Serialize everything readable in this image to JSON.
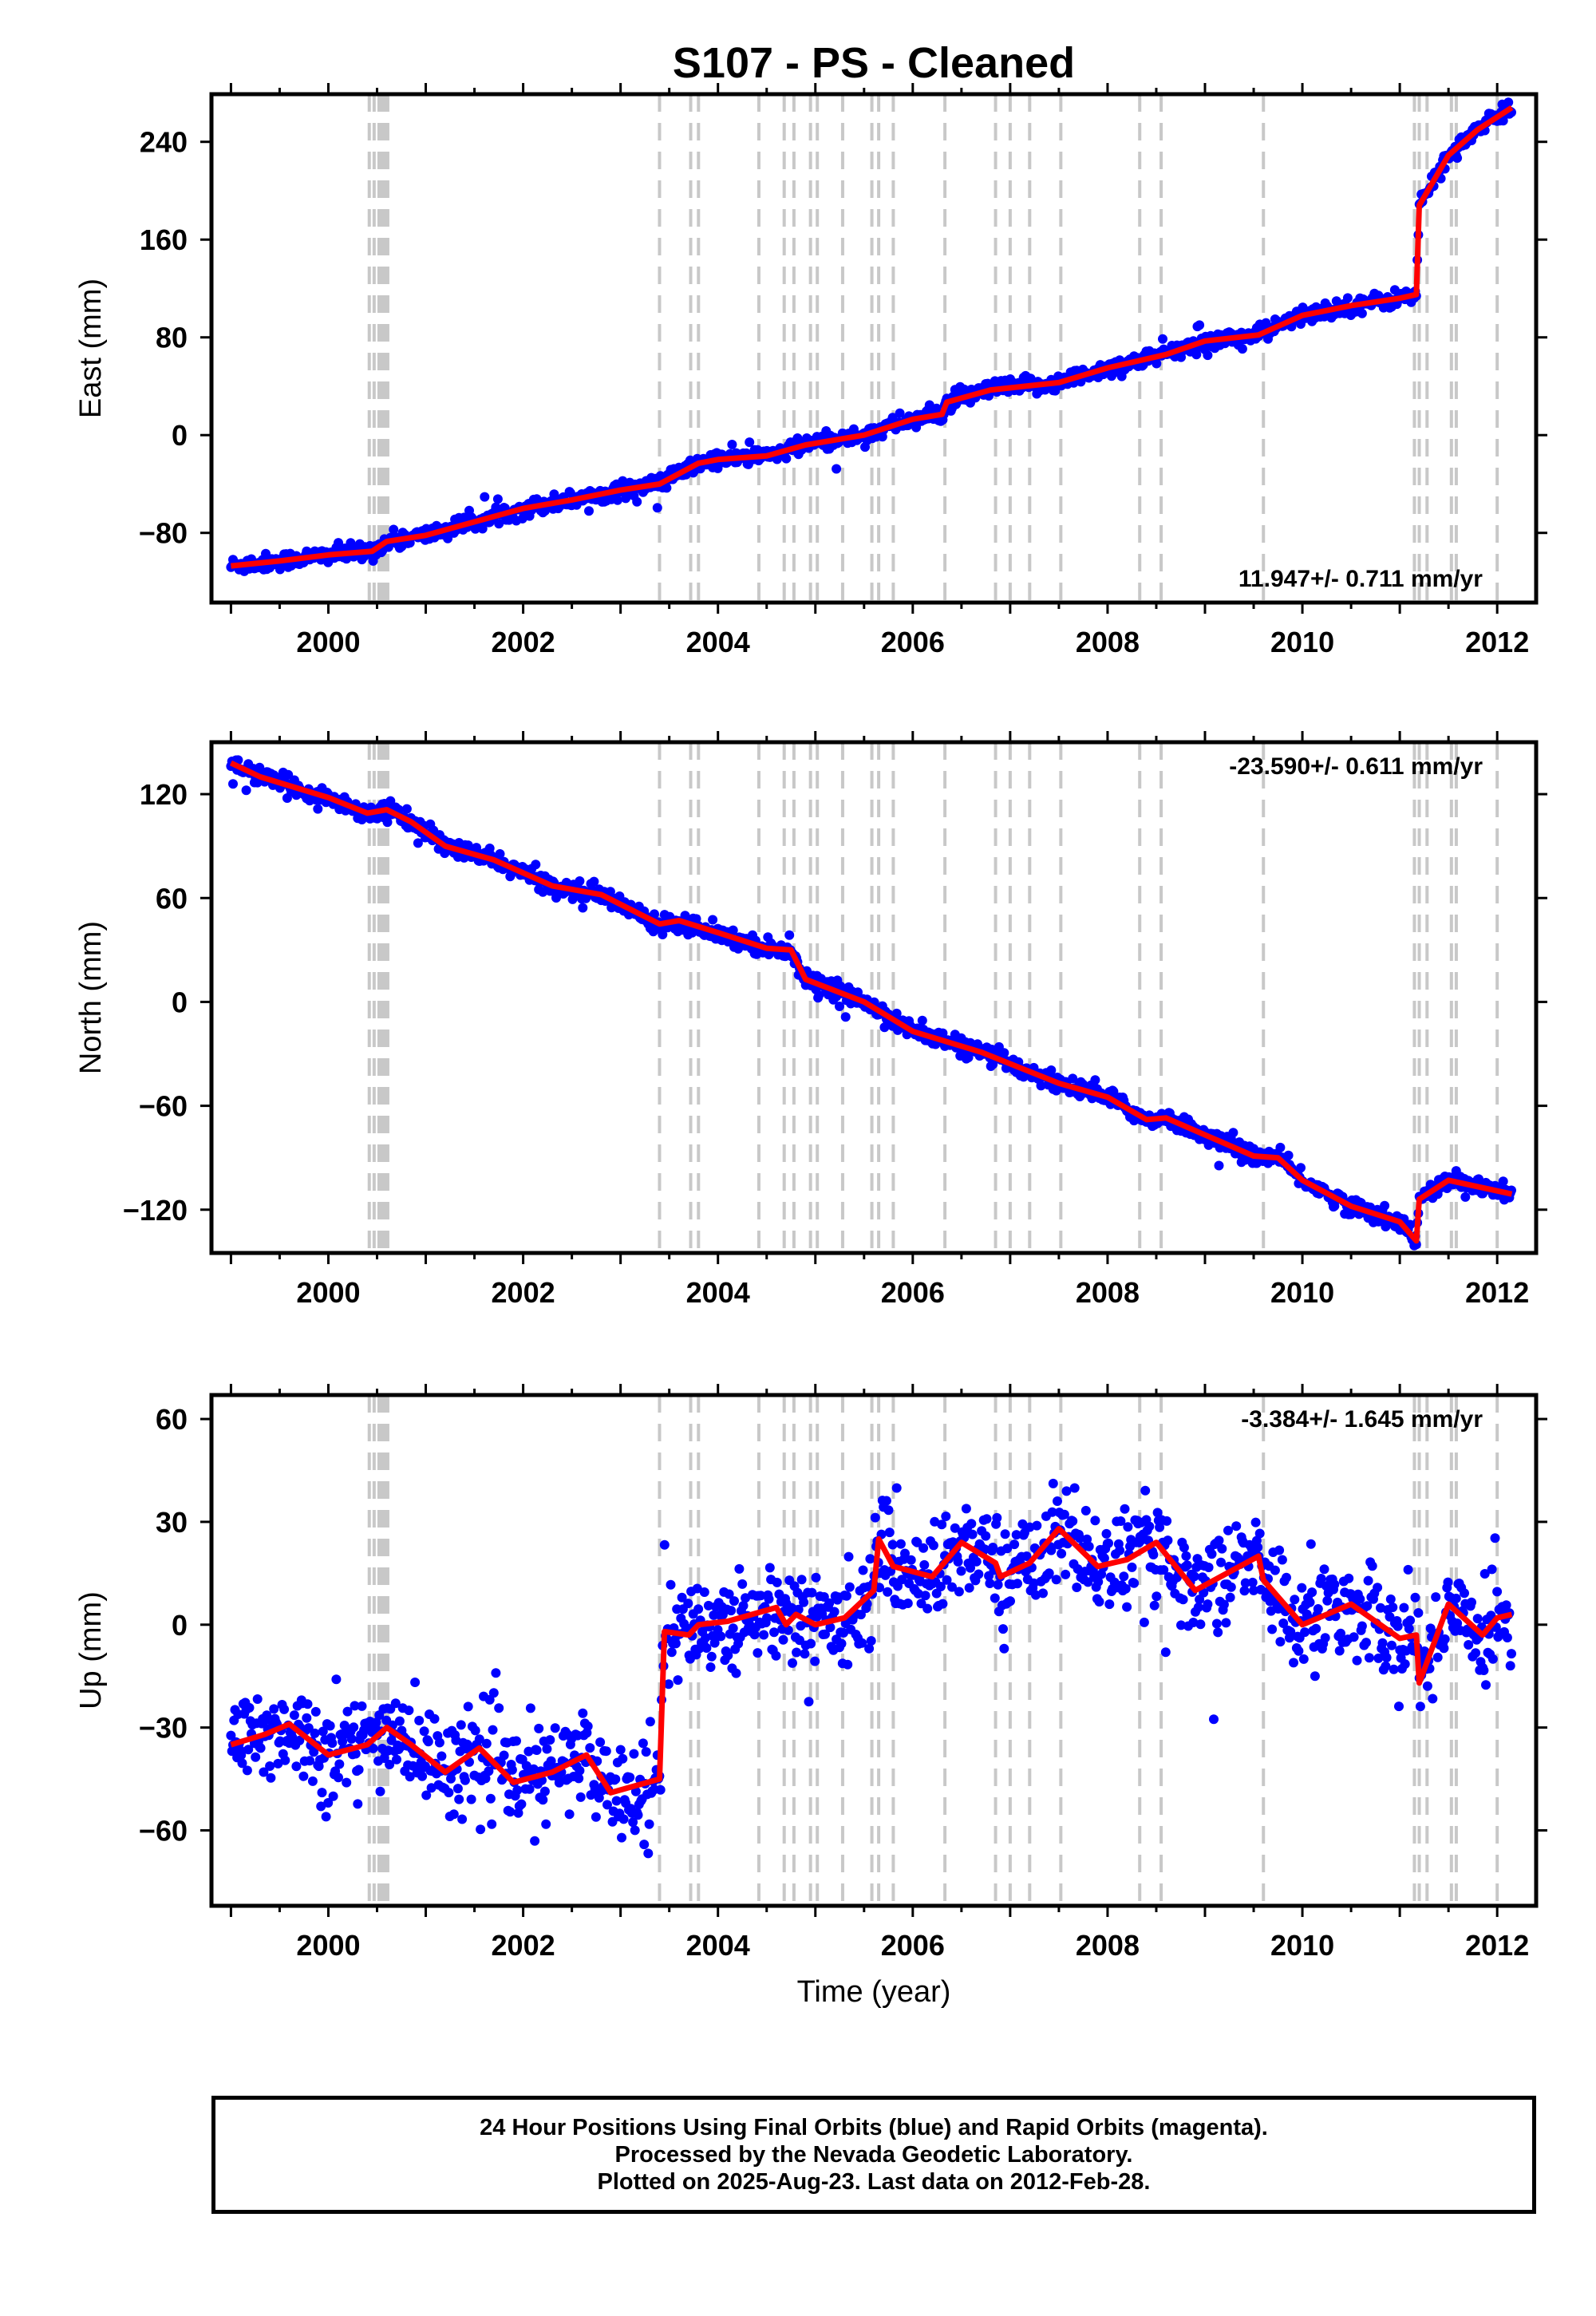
{
  "title": "S107  - PS - Cleaned",
  "colors": {
    "final_orbits": "#0000ff",
    "model": "#ff0000",
    "events": "#c8c8c8",
    "frame": "#000000"
  },
  "footer": {
    "line1": "24 Hour Positions Using Final Orbits (blue) and Rapid Orbits (magenta).",
    "line2": "Processed by the Nevada Geodetic Laboratory.",
    "line3": "Plotted on 2025-Aug-23. Last data on 2012-Feb-28."
  },
  "chart_data": [
    {
      "type": "scatter",
      "title": "S107  - PS - Cleaned",
      "xlabel": "",
      "ylabel": "East (mm)",
      "xlim": [
        1998.8,
        2012.4
      ],
      "ylim": [
        -137,
        279
      ],
      "xticks": [
        2000,
        2002,
        2004,
        2006,
        2008,
        2010,
        2012
      ],
      "yticks": [
        -80,
        0,
        80,
        160,
        240
      ],
      "rate_label": "11.947+/- 0.711 mm/yr",
      "rate_position": "bottom-right",
      "grid": false,
      "series": [
        {
          "role": "daily-positions",
          "color": "#0000ff",
          "scatter_sd": 3.5,
          "x": [
            1999.0,
            1999.5,
            2000.0,
            2000.45,
            2000.6,
            2001.0,
            2001.5,
            2002.0,
            2002.5,
            2003.0,
            2003.4,
            2003.8,
            2004.0,
            2004.5,
            2004.9,
            2005.5,
            2006.0,
            2006.3,
            2006.35,
            2006.8,
            2007.5,
            2008.0,
            2008.6,
            2009.0,
            2009.55,
            2010.0,
            2010.5,
            2011.0,
            2011.17,
            2011.2,
            2011.5,
            2011.8,
            2012.15
          ],
          "y": [
            -107,
            -103,
            -98,
            -95,
            -87,
            -82,
            -71,
            -60,
            -53,
            -45,
            -40,
            -23,
            -20,
            -17,
            -8,
            0,
            13,
            17,
            27,
            37,
            43,
            55,
            66,
            77,
            82,
            98,
            106,
            112,
            115,
            188,
            229,
            250,
            268
          ]
        },
        {
          "role": "model-fit",
          "color": "#ff0000",
          "x": [
            1999.0,
            1999.5,
            2000.0,
            2000.45,
            2000.6,
            2001.0,
            2001.5,
            2002.0,
            2002.5,
            2003.0,
            2003.4,
            2003.8,
            2004.0,
            2004.5,
            2004.9,
            2005.5,
            2006.0,
            2006.3,
            2006.35,
            2006.8,
            2007.5,
            2008.0,
            2008.6,
            2009.0,
            2009.55,
            2010.0,
            2010.5,
            2011.0,
            2011.17,
            2011.2,
            2011.5,
            2011.8,
            2012.15
          ],
          "y": [
            -107,
            -103,
            -98,
            -95,
            -87,
            -82,
            -71,
            -60,
            -53,
            -45,
            -40,
            -23,
            -20,
            -17,
            -8,
            0,
            13,
            17,
            27,
            37,
            43,
            55,
            66,
            77,
            82,
            98,
            106,
            112,
            115,
            188,
            229,
            250,
            268
          ]
        }
      ]
    },
    {
      "type": "scatter",
      "xlabel": "",
      "ylabel": "North (mm)",
      "xlim": [
        1998.8,
        2012.4
      ],
      "ylim": [
        -145,
        150
      ],
      "xticks": [
        2000,
        2002,
        2004,
        2006,
        2008,
        2010,
        2012
      ],
      "yticks": [
        -120,
        -60,
        0,
        60,
        120
      ],
      "rate_label": "-23.590+/- 0.611 mm/yr",
      "rate_position": "top-right",
      "grid": false,
      "series": [
        {
          "role": "daily-positions",
          "color": "#0000ff",
          "scatter_sd": 2.5,
          "x": [
            1999.0,
            1999.3,
            2000.0,
            2000.4,
            2000.6,
            2000.85,
            2001.2,
            2001.7,
            2002.3,
            2002.8,
            2003.4,
            2003.6,
            2004.0,
            2004.5,
            2004.75,
            2004.9,
            2005.5,
            2006.0,
            2006.7,
            2007.5,
            2008.0,
            2008.4,
            2008.6,
            2009.5,
            2009.75,
            2010.0,
            2010.5,
            2011.0,
            2011.17,
            2011.2,
            2011.5,
            2012.15
          ],
          "y": [
            138,
            130,
            118,
            109,
            111,
            104,
            90,
            82,
            67,
            62,
            45,
            47,
            40,
            31,
            30,
            13,
            0,
            -17,
            -29,
            -47,
            -55,
            -68,
            -67,
            -89,
            -90,
            -103,
            -118,
            -127,
            -138,
            -114,
            -103,
            -111
          ]
        },
        {
          "role": "model-fit",
          "color": "#ff0000",
          "x": [
            1999.0,
            1999.3,
            2000.0,
            2000.4,
            2000.6,
            2000.85,
            2001.2,
            2001.7,
            2002.3,
            2002.8,
            2003.4,
            2003.6,
            2004.0,
            2004.5,
            2004.75,
            2004.9,
            2005.5,
            2006.0,
            2006.7,
            2007.5,
            2008.0,
            2008.4,
            2008.6,
            2009.5,
            2009.75,
            2010.0,
            2010.5,
            2011.0,
            2011.17,
            2011.2,
            2011.5,
            2012.15
          ],
          "y": [
            138,
            130,
            118,
            109,
            111,
            104,
            90,
            82,
            67,
            62,
            45,
            47,
            40,
            31,
            30,
            13,
            0,
            -17,
            -29,
            -47,
            -55,
            -68,
            -67,
            -89,
            -90,
            -103,
            -118,
            -127,
            -138,
            -114,
            -103,
            -111
          ]
        }
      ]
    },
    {
      "type": "scatter",
      "xlabel": "Time (year)",
      "ylabel": "Up (mm)",
      "xlim": [
        1998.8,
        2012.4
      ],
      "ylim": [
        -82,
        67
      ],
      "xticks": [
        2000,
        2002,
        2004,
        2006,
        2008,
        2010,
        2012
      ],
      "yticks": [
        -60,
        -30,
        0,
        30,
        60
      ],
      "rate_label": "-3.384+/- 1.645 mm/yr",
      "rate_position": "top-right",
      "grid": false,
      "series": [
        {
          "role": "daily-positions",
          "color": "#0000ff",
          "scatter_sd": 7,
          "x": [
            1999.0,
            1999.35,
            1999.6,
            2000.0,
            2000.4,
            2000.6,
            2000.85,
            2001.2,
            2001.55,
            2001.9,
            2002.3,
            2002.65,
            2002.9,
            2003.4,
            2003.45,
            2003.7,
            2003.8,
            2004.1,
            2004.6,
            2004.7,
            2004.8,
            2005.0,
            2005.3,
            2005.6,
            2005.65,
            2005.8,
            2006.2,
            2006.5,
            2006.85,
            2006.9,
            2007.2,
            2007.5,
            2007.9,
            2008.2,
            2008.5,
            2008.9,
            2009.55,
            2009.6,
            2010.0,
            2010.5,
            2011.0,
            2011.17,
            2011.2,
            2011.5,
            2011.85,
            2012.0,
            2012.15
          ],
          "y": [
            -35,
            -32,
            -29,
            -38,
            -35,
            -30,
            -35,
            -43,
            -36,
            -46,
            -43,
            -38,
            -49,
            -45,
            -2,
            -3,
            0,
            1,
            5,
            0,
            3,
            0,
            2,
            10,
            25,
            17,
            14,
            24,
            18,
            14,
            18,
            28,
            17,
            19,
            24,
            10,
            20,
            13,
            0,
            6,
            -4,
            -3,
            -17,
            6,
            -3,
            2,
            3
          ]
        },
        {
          "role": "model-fit",
          "color": "#ff0000",
          "x": [
            1999.0,
            1999.35,
            1999.6,
            2000.0,
            2000.4,
            2000.6,
            2000.85,
            2001.2,
            2001.55,
            2001.9,
            2002.3,
            2002.65,
            2002.9,
            2003.4,
            2003.45,
            2003.7,
            2003.8,
            2004.1,
            2004.6,
            2004.7,
            2004.8,
            2005.0,
            2005.3,
            2005.6,
            2005.65,
            2005.8,
            2006.2,
            2006.5,
            2006.85,
            2006.9,
            2007.2,
            2007.5,
            2007.9,
            2008.2,
            2008.5,
            2008.9,
            2009.55,
            2009.6,
            2010.0,
            2010.5,
            2011.0,
            2011.17,
            2011.2,
            2011.5,
            2011.85,
            2012.0,
            2012.15
          ],
          "y": [
            -35,
            -32,
            -29,
            -38,
            -35,
            -30,
            -35,
            -43,
            -36,
            -46,
            -43,
            -38,
            -49,
            -45,
            -2,
            -3,
            0,
            1,
            5,
            0,
            3,
            0,
            2,
            10,
            25,
            17,
            14,
            24,
            18,
            14,
            18,
            28,
            17,
            19,
            24,
            10,
            20,
            13,
            0,
            6,
            -4,
            -3,
            -17,
            6,
            -3,
            2,
            3
          ]
        }
      ]
    }
  ],
  "event_epochs": [
    2000.42,
    2000.47,
    2000.52,
    2000.55,
    2000.58,
    2000.61,
    2003.4,
    2003.72,
    2003.8,
    2004.42,
    2004.68,
    2004.78,
    2004.95,
    2005.02,
    2005.28,
    2005.58,
    2005.65,
    2005.8,
    2006.33,
    2006.85,
    2007.0,
    2007.2,
    2007.52,
    2008.33,
    2008.55,
    2009.6,
    2011.15,
    2011.2,
    2011.28,
    2011.53,
    2011.58,
    2012.0
  ]
}
